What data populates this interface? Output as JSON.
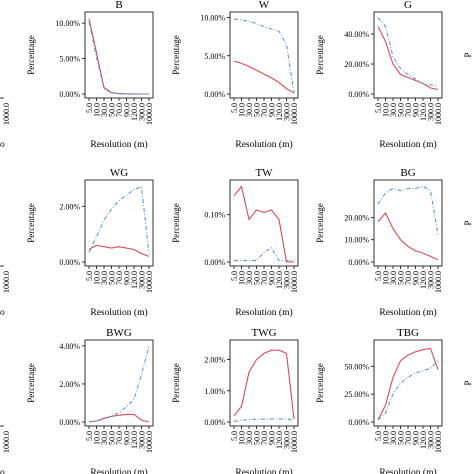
{
  "x_tick_labels": [
    "5.0",
    "10.0",
    "30.0",
    "50.0",
    "70.0",
    "90.0",
    "120.0",
    "300.0",
    "1000.0"
  ],
  "xlabel": "Resolution (m)",
  "ylabel": "Percentage",
  "colors": {
    "red": "#d94c5c",
    "blue": "#5b9bd5",
    "axis": "#000000"
  },
  "cut_panels": {
    "left_x_label": "1000.0",
    "left_xlabel_frag": "o",
    "right_xlabel_frag": "P"
  },
  "chart_data": [
    {
      "type": "line",
      "title": "B",
      "ylim": [
        0,
        11
      ],
      "yticks": [
        0,
        5,
        10
      ],
      "yticklabels": [
        "0.00%",
        "5.00%",
        "10.00%"
      ],
      "series": [
        {
          "color": "red",
          "values": [
            10.6,
            5.8,
            0.9,
            0.2,
            0.05,
            0.02,
            0.01,
            0.0,
            0.0
          ]
        },
        {
          "color": "blue",
          "values": [
            10.2,
            5.2,
            0.7,
            0.15,
            0.04,
            0.02,
            0.01,
            0.0,
            0.0
          ]
        }
      ]
    },
    {
      "type": "line",
      "title": "W",
      "ylim": [
        0,
        10.2
      ],
      "yticks": [
        0,
        5,
        10
      ],
      "yticklabels": [
        "0.00%",
        "5.00%",
        "10.00%"
      ],
      "series": [
        {
          "color": "red",
          "values": [
            4.3,
            4.0,
            3.6,
            3.1,
            2.6,
            2.1,
            1.5,
            0.7,
            0.1
          ]
        },
        {
          "color": "blue",
          "values": [
            9.8,
            9.7,
            9.5,
            9.2,
            8.8,
            8.5,
            8.2,
            6.5,
            0.1
          ]
        }
      ]
    },
    {
      "type": "line",
      "title": "G",
      "ylim": [
        0,
        52
      ],
      "yticks": [
        0,
        20,
        40
      ],
      "yticklabels": [
        "0.00%",
        "20.00%",
        "40.00%"
      ],
      "series": [
        {
          "color": "red",
          "values": [
            45,
            35,
            20,
            13,
            11,
            9,
            7,
            4,
            3
          ]
        },
        {
          "color": "blue",
          "values": [
            51,
            45,
            25,
            17,
            13,
            10,
            7,
            6,
            5
          ]
        }
      ]
    },
    {
      "type": "line",
      "title": "WG",
      "ylim": [
        0,
        2.8
      ],
      "yticks": [
        0,
        2
      ],
      "yticklabels": [
        "0.00%",
        "2.00%"
      ],
      "series": [
        {
          "color": "red",
          "values": [
            0.45,
            0.6,
            0.55,
            0.5,
            0.55,
            0.5,
            0.45,
            0.3,
            0.2
          ]
        },
        {
          "color": "blue",
          "values": [
            0.35,
            0.9,
            1.5,
            1.9,
            2.2,
            2.4,
            2.6,
            2.7,
            0.3
          ]
        }
      ]
    },
    {
      "type": "line",
      "title": "TW",
      "ylim": [
        0,
        0.165
      ],
      "yticks": [
        0,
        0.1
      ],
      "yticklabels": [
        "0.00%",
        "0.10%"
      ],
      "series": [
        {
          "color": "red",
          "values": [
            0.14,
            0.16,
            0.09,
            0.11,
            0.105,
            0.11,
            0.09,
            0.0,
            0.0
          ]
        },
        {
          "color": "blue",
          "values": [
            0.003,
            0.003,
            0.003,
            0.003,
            0.02,
            0.03,
            0.003,
            0.003,
            0.003
          ]
        }
      ]
    },
    {
      "type": "line",
      "title": "BG",
      "ylim": [
        0,
        35
      ],
      "yticks": [
        0,
        10,
        20
      ],
      "yticklabels": [
        "0.00%",
        "10.00%",
        "20.00%"
      ],
      "series": [
        {
          "color": "red",
          "values": [
            18,
            22,
            15,
            10,
            7,
            5,
            4,
            2.5,
            1
          ]
        },
        {
          "color": "blue",
          "values": [
            26,
            31,
            33,
            32,
            33,
            33,
            34,
            32,
            12
          ]
        }
      ]
    },
    {
      "type": "line",
      "title": "BWG",
      "ylim": [
        0,
        4.1
      ],
      "yticks": [
        0,
        2,
        4
      ],
      "yticklabels": [
        "0.00%",
        "2.00%",
        "4.00%"
      ],
      "series": [
        {
          "color": "red",
          "values": [
            0.0,
            0.05,
            0.2,
            0.3,
            0.35,
            0.4,
            0.4,
            0.1,
            0.0
          ]
        },
        {
          "color": "blue",
          "values": [
            0.0,
            0.05,
            0.15,
            0.3,
            0.5,
            0.8,
            1.2,
            2.5,
            4.0
          ]
        }
      ]
    },
    {
      "type": "line",
      "title": "TWG",
      "ylim": [
        0,
        2.5
      ],
      "yticks": [
        0,
        1,
        2
      ],
      "yticklabels": [
        "0.00%",
        "1.00%",
        "2.00%"
      ],
      "series": [
        {
          "color": "red",
          "values": [
            0.2,
            0.5,
            1.6,
            2.0,
            2.2,
            2.3,
            2.3,
            2.2,
            0.1
          ]
        },
        {
          "color": "blue",
          "values": [
            0.02,
            0.05,
            0.08,
            0.09,
            0.09,
            0.1,
            0.1,
            0.1,
            0.05
          ]
        }
      ]
    },
    {
      "type": "line",
      "title": "TBG",
      "ylim": [
        0,
        70
      ],
      "yticks": [
        0,
        25,
        50
      ],
      "yticklabels": [
        "0.00%",
        "25.00%",
        "50.00%"
      ],
      "series": [
        {
          "color": "red",
          "values": [
            2,
            15,
            40,
            55,
            60,
            63,
            65,
            66,
            47
          ]
        },
        {
          "color": "blue",
          "values": [
            2,
            8,
            25,
            35,
            40,
            44,
            46,
            48,
            55
          ]
        }
      ]
    }
  ]
}
